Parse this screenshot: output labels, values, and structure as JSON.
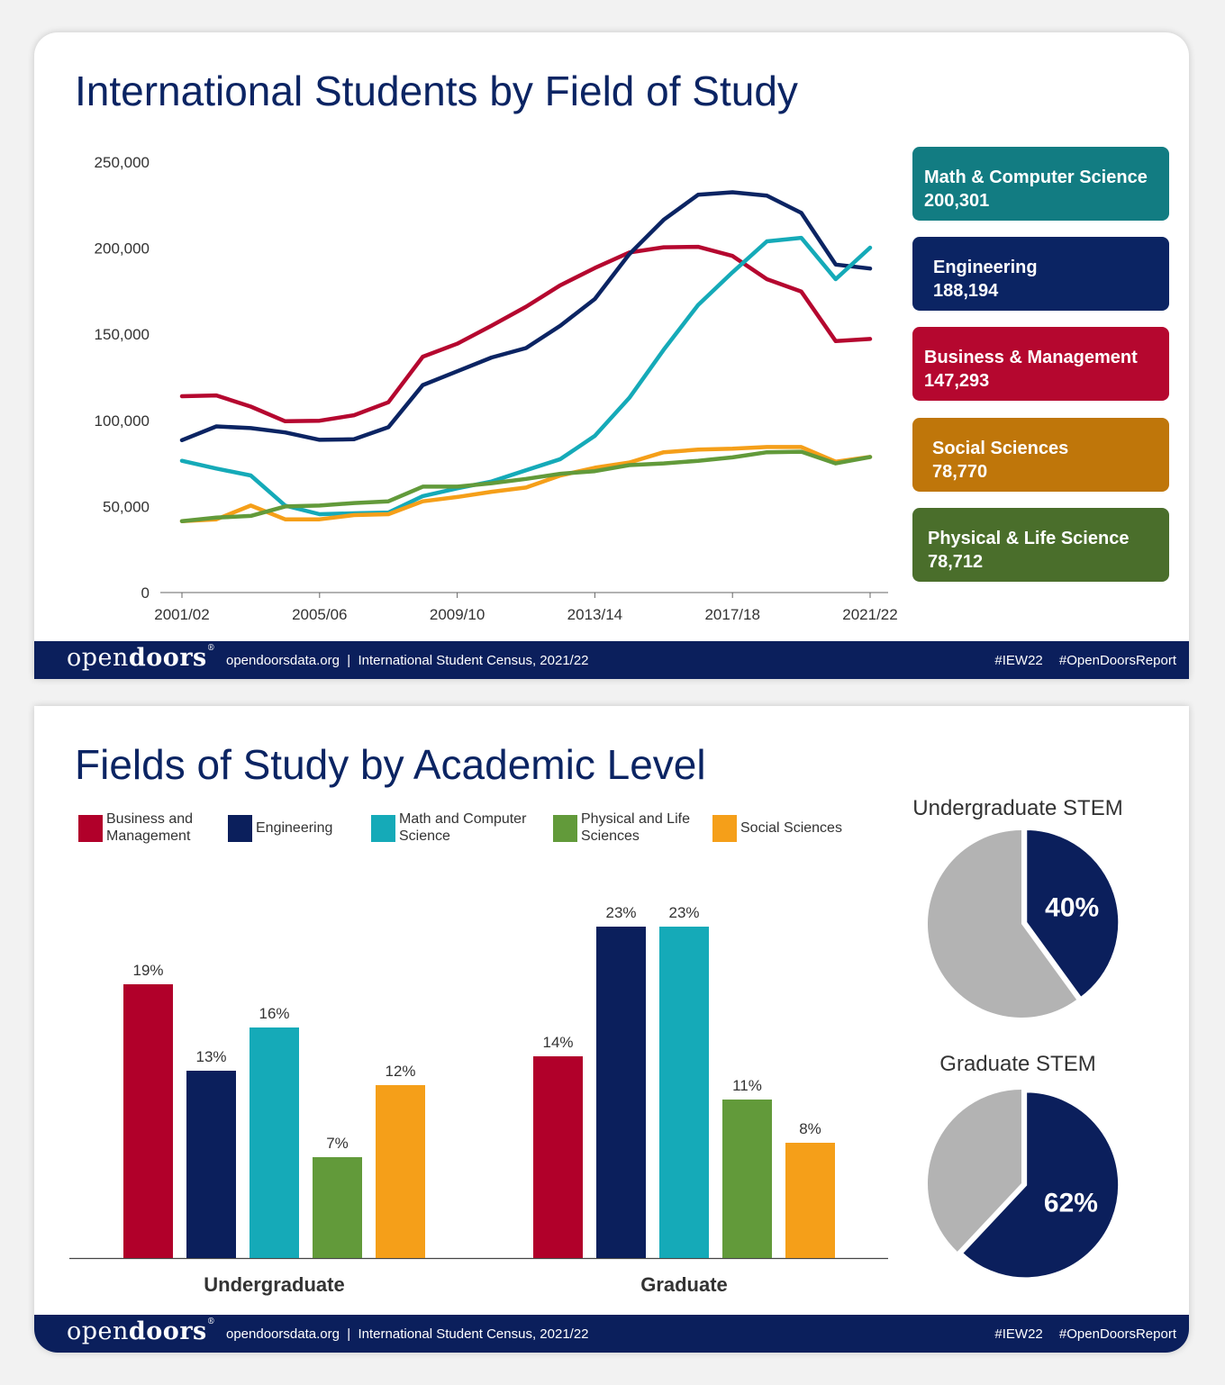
{
  "top": {
    "title": "International Students by Field of Study",
    "legend": [
      {
        "name": "Math & Computer Science",
        "value": "200,301",
        "color": "#127c82"
      },
      {
        "name": "Engineering",
        "value": "188,194",
        "color": "#0b2463"
      },
      {
        "name": "Business & Management",
        "value": "147,293",
        "color": "#b5072f"
      },
      {
        "name": "Social Sciences",
        "value": "78,770",
        "color": "#bf760a"
      },
      {
        "name": "Physical & Life Science",
        "value": "78,712",
        "color": "#4a6e2b"
      }
    ]
  },
  "bottom": {
    "title": "Fields of Study by Academic Level",
    "legend": [
      {
        "label": "Business and Management",
        "color": "#b1002a"
      },
      {
        "label": "Engineering",
        "color": "#0b1f5c"
      },
      {
        "label": "Math and Computer Science",
        "color": "#15aab8"
      },
      {
        "label": "Physical and Life Sciences",
        "color": "#629a3a"
      },
      {
        "label": "Social Sciences",
        "color": "#f59f19"
      }
    ],
    "pies": [
      {
        "title": "Undergraduate STEM",
        "label": "40%"
      },
      {
        "title": "Graduate STEM",
        "label": "62%"
      }
    ]
  },
  "footer": {
    "logo_light": "open",
    "logo_bold": "doors",
    "logo_mark": "®",
    "info": "opendoorsdata.org  |  International Student Census, 2021/22",
    "tag1": "#IEW22",
    "tag2": "#OpenDoorsReport"
  },
  "chart_data": [
    {
      "type": "line",
      "title": "International Students by Field of Study",
      "x": [
        "2001/02",
        "2002/03",
        "2003/04",
        "2004/05",
        "2005/06",
        "2006/07",
        "2007/08",
        "2008/09",
        "2009/10",
        "2010/11",
        "2011/12",
        "2012/13",
        "2013/14",
        "2014/15",
        "2015/16",
        "2016/17",
        "2017/18",
        "2018/19",
        "2019/20",
        "2020/21",
        "2021/22"
      ],
      "x_tick_labels": [
        "2001/02",
        "2005/06",
        "2009/10",
        "2013/14",
        "2017/18",
        "2021/22"
      ],
      "ylim": [
        0,
        250000
      ],
      "y_ticks": [
        0,
        50000,
        100000,
        150000,
        200000,
        250000
      ],
      "y_tick_labels": [
        "0",
        "50,000",
        "100,000",
        "150,000",
        "200,000",
        "250,000"
      ],
      "series": [
        {
          "name": "Business & Management",
          "color": "#b5072f",
          "values": [
            114000,
            114500,
            108000,
            99500,
            99800,
            103000,
            110500,
            137000,
            144500,
            155000,
            166000,
            178500,
            188500,
            197500,
            200500,
            200800,
            195500,
            182000,
            174800,
            146000,
            147293
          ]
        },
        {
          "name": "Engineering",
          "color": "#0b2463",
          "values": [
            88500,
            96500,
            95500,
            93000,
            88700,
            89000,
            96000,
            120500,
            128500,
            136500,
            142000,
            155000,
            170500,
            196500,
            216500,
            231000,
            232500,
            230500,
            220500,
            190500,
            188194
          ]
        },
        {
          "name": "Math & Computer Science",
          "color": "#15aab8",
          "values": [
            76500,
            72000,
            68000,
            50500,
            45500,
            46000,
            46500,
            56000,
            60500,
            64500,
            71000,
            77500,
            91000,
            113000,
            141000,
            167000,
            186000,
            204000,
            206000,
            182000,
            200301
          ]
        },
        {
          "name": "Social Sciences",
          "color": "#f59f19",
          "values": [
            41500,
            42500,
            50500,
            42500,
            42500,
            45000,
            45500,
            53000,
            55500,
            58500,
            61000,
            68000,
            72500,
            75500,
            81500,
            83000,
            83500,
            84500,
            84500,
            76000,
            78770
          ]
        },
        {
          "name": "Physical & Life Science",
          "color": "#629a3a",
          "values": [
            41500,
            43500,
            44500,
            50000,
            50500,
            52000,
            53000,
            61500,
            61500,
            63500,
            66000,
            69000,
            70500,
            74000,
            75000,
            76500,
            78500,
            81500,
            81800,
            75000,
            78712
          ]
        }
      ]
    },
    {
      "type": "bar",
      "title": "Fields of Study by Academic Level",
      "categories": [
        "Undergraduate",
        "Graduate"
      ],
      "ylim": [
        0,
        25
      ],
      "series": [
        {
          "name": "Business and Management",
          "color": "#b1002a",
          "values": [
            19,
            14
          ],
          "labels": [
            "19%",
            "14%"
          ]
        },
        {
          "name": "Engineering",
          "color": "#0b1f5c",
          "values": [
            13,
            23
          ],
          "labels": [
            "13%",
            "23%"
          ]
        },
        {
          "name": "Math and Computer Science",
          "color": "#15aab8",
          "values": [
            16,
            23
          ],
          "labels": [
            "16%",
            "23%"
          ]
        },
        {
          "name": "Physical and Life Sciences",
          "color": "#629a3a",
          "values": [
            7,
            11
          ],
          "labels": [
            "7%",
            "11%"
          ]
        },
        {
          "name": "Social Sciences",
          "color": "#f59f19",
          "values": [
            12,
            8
          ],
          "labels": [
            "12%",
            "8%"
          ]
        }
      ]
    },
    {
      "type": "pie",
      "title": "Undergraduate STEM",
      "slices": [
        {
          "label": "40%",
          "value": 40,
          "color": "#0b1f5c"
        },
        {
          "value": 60,
          "color": "#b3b3b3"
        }
      ]
    },
    {
      "type": "pie",
      "title": "Graduate STEM",
      "slices": [
        {
          "label": "62%",
          "value": 62,
          "color": "#0b1f5c"
        },
        {
          "value": 38,
          "color": "#b3b3b3"
        }
      ]
    }
  ]
}
